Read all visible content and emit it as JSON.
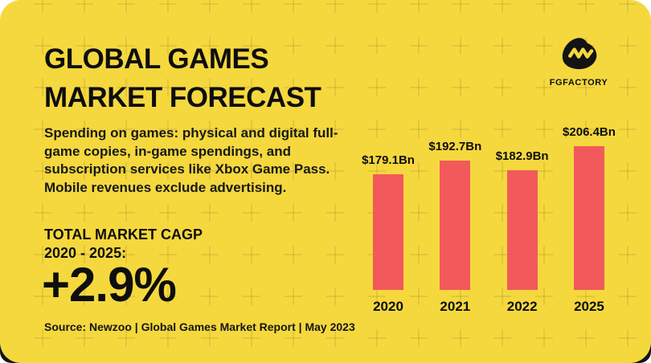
{
  "page": {
    "background": "#ffffff"
  },
  "card": {
    "background_color": "#F5D83E",
    "backplate_color": "#141414",
    "plus_pattern_color": "rgba(0,0,0,0.08)"
  },
  "header": {
    "title_line1": "GLOBAL GAMES",
    "title_line2": "MARKET FORECAST"
  },
  "brand": {
    "name": "FGFACTORY",
    "logo_icon": "monster-blob-icon"
  },
  "description": {
    "lines": [
      "Spending on games: physical and digital full-",
      "game copies, in-game spendings, and",
      "subscription services like Xbox Game Pass.",
      "Mobile revenues exclude advertising."
    ]
  },
  "cagr": {
    "label_line1": "TOTAL MARKET CAGP",
    "label_line2": "2020 - 2025:",
    "value": "+2.9%"
  },
  "source": "Source: Newzoo | Global Games Market Report | May 2023",
  "chart_data": {
    "type": "bar",
    "title": "Global games market forecast",
    "categories": [
      "2020",
      "2021",
      "2022",
      "2025"
    ],
    "values": [
      179.1,
      192.7,
      182.9,
      206.4
    ],
    "value_labels": [
      "$179.1Bn",
      "$192.7Bn",
      "$182.9Bn",
      "$206.4Bn"
    ],
    "unit": "USD billions",
    "bar_color": "#F2595B",
    "label_color": "#0e0e0e",
    "grid": false,
    "legend": false,
    "axis": "category labels below bars, value labels above bars, non-zero baseline"
  }
}
